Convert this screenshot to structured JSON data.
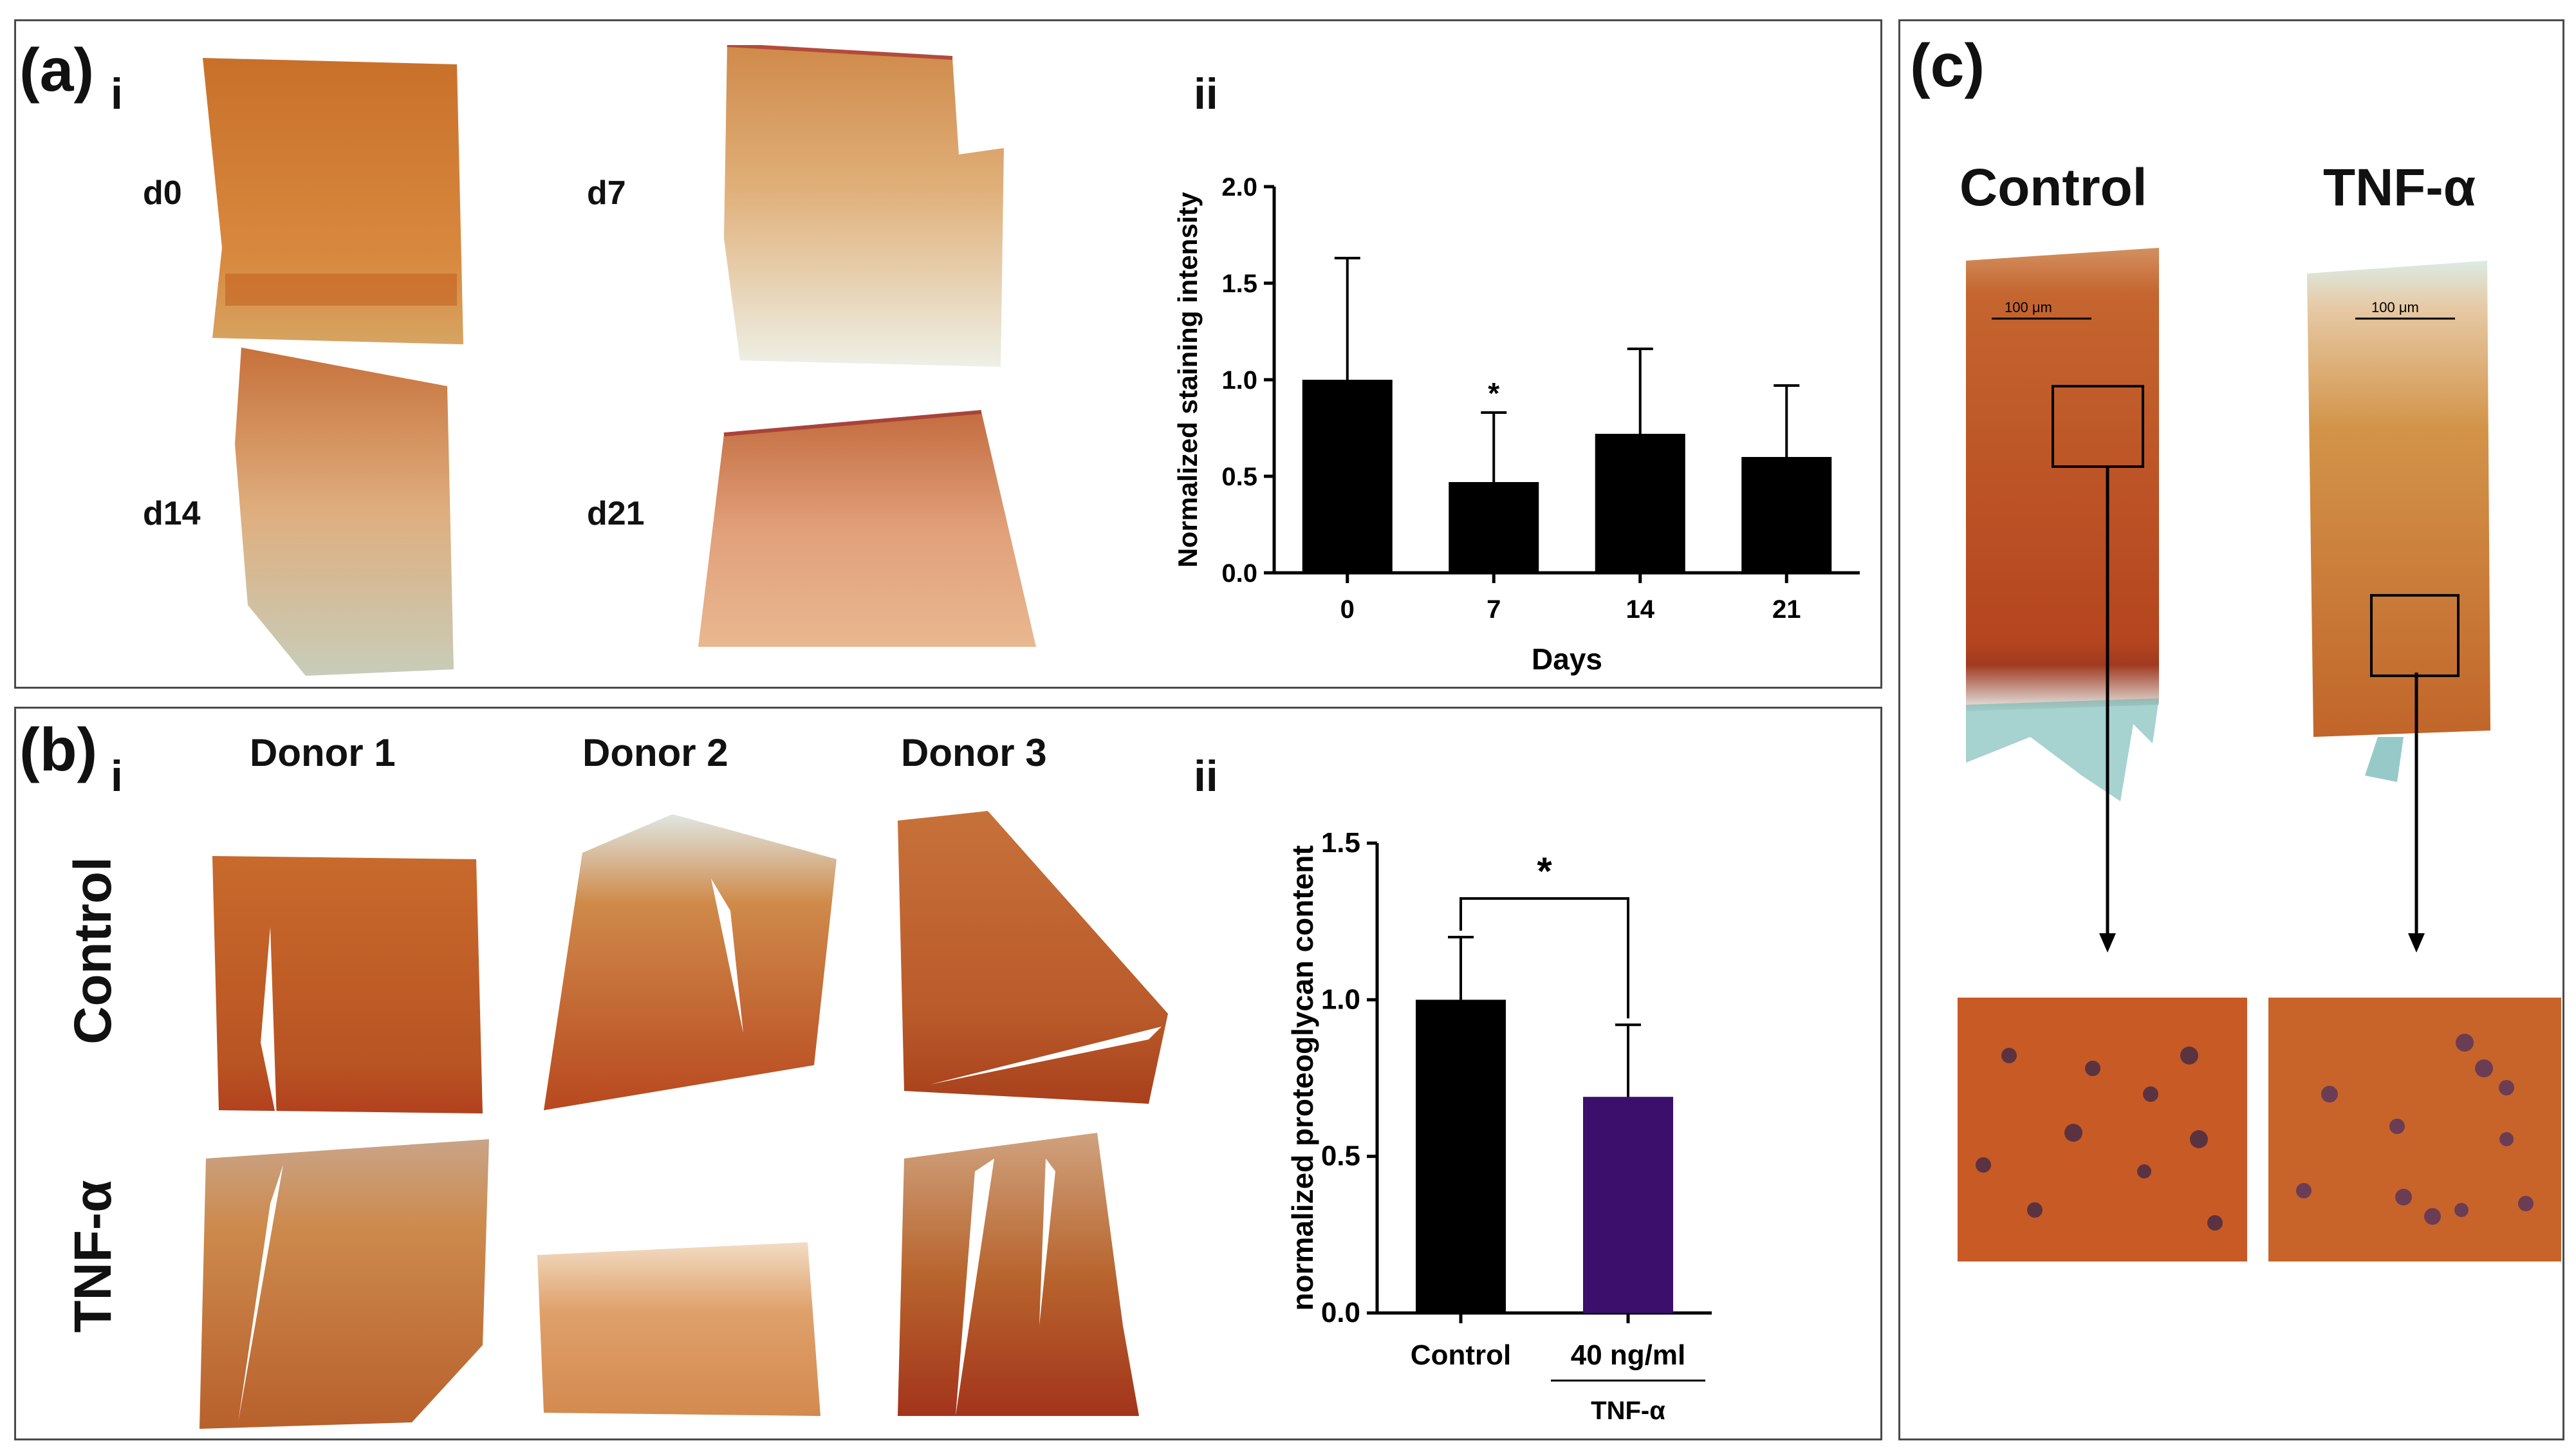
{
  "panel_a": {
    "label": "(a)",
    "sub_i": "i",
    "sub_ii": "ii",
    "day_labels": [
      "d0",
      "d7",
      "d14",
      "d21"
    ]
  },
  "panel_b": {
    "label": "(b)",
    "sub_i": "i",
    "sub_ii": "ii",
    "donors": [
      "Donor 1",
      "Donor 2",
      "Donor 3"
    ],
    "rows": [
      "Control",
      "TNF-α"
    ]
  },
  "panel_c": {
    "label": "(c)",
    "conditions": [
      "Control",
      "TNF-α"
    ],
    "scalebar": "100 μm"
  },
  "colors": {
    "bar_control": "#000000",
    "bar_tnf": "#3b0f6b",
    "tissue_orange": "#d0793a",
    "tissue_red": "#b0421c"
  },
  "chart_data": [
    {
      "type": "bar",
      "title": "",
      "xlabel": "Days",
      "ylabel": "Normalized staining intensity",
      "categories": [
        "0",
        "7",
        "14",
        "21"
      ],
      "values": [
        1.0,
        0.47,
        0.72,
        0.6
      ],
      "errors": [
        0.63,
        0.36,
        0.44,
        0.37
      ],
      "significance": [
        "",
        "*",
        "",
        ""
      ],
      "ylim": [
        0,
        2.0
      ],
      "yticks": [
        "0.0",
        "0.5",
        "1.0",
        "1.5",
        "2.0"
      ]
    },
    {
      "type": "bar",
      "title": "",
      "xlabel": "",
      "ylabel": "normalized proteoglycan content",
      "categories": [
        "Control",
        "40 ng/ml"
      ],
      "group_label": "TNF-α",
      "values": [
        1.0,
        0.69
      ],
      "errors": [
        0.2,
        0.23
      ],
      "bracket_label": "*",
      "ylim": [
        0,
        1.5
      ],
      "yticks": [
        "0.0",
        "0.5",
        "1.0",
        "1.5"
      ]
    }
  ]
}
